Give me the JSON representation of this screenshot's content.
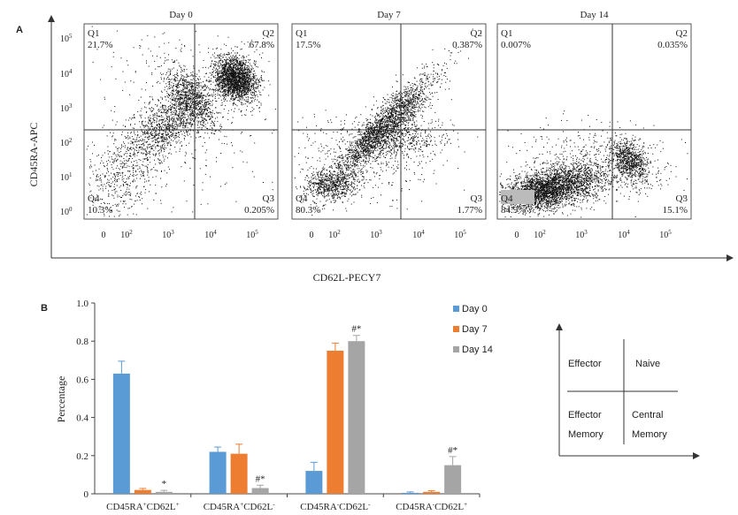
{
  "panelA": {
    "letter": "A",
    "ylabel": "CD45RA-APC",
    "xlabel": "CD62L-PECY7",
    "y_ticks": [
      {
        "base": "10",
        "exp": "5"
      },
      {
        "base": "10",
        "exp": "4"
      },
      {
        "base": "10",
        "exp": "3"
      },
      {
        "base": "10",
        "exp": "2"
      },
      {
        "base": "10",
        "exp": "1"
      },
      {
        "base": "10",
        "exp": "0"
      }
    ],
    "x_ticks": [
      {
        "base": "0",
        "exp": ""
      },
      {
        "base": "10",
        "exp": "2"
      },
      {
        "base": "10",
        "exp": "3"
      },
      {
        "base": "10",
        "exp": "4"
      },
      {
        "base": "10",
        "exp": "5"
      }
    ]
  },
  "panelB": {
    "letter": "B",
    "ylabel": "Percentage"
  },
  "diagram": {
    "top_left": "Effector",
    "top_right": "Naive",
    "bottom_left_1": "Effector",
    "bottom_left_2": "Memory",
    "bottom_right_1": "Central",
    "bottom_right_2": "Memory"
  },
  "chart_data": [
    {
      "type": "scatter",
      "title": "Day 0",
      "xlabel": "CD62L-PECY7",
      "ylabel": "CD45RA-APC",
      "scale": "log",
      "quadrants": [
        {
          "name": "Q1",
          "value": "21.7%"
        },
        {
          "name": "Q2",
          "value": "67.8%"
        },
        {
          "name": "Q3",
          "value": "0.205%"
        },
        {
          "name": "Q4",
          "value": "10.3%"
        }
      ]
    },
    {
      "type": "scatter",
      "title": "Day 7",
      "xlabel": "CD62L-PECY7",
      "ylabel": "CD45RA-APC",
      "scale": "log",
      "quadrants": [
        {
          "name": "Q1",
          "value": "17.5%"
        },
        {
          "name": "Q2",
          "value": "0.387%"
        },
        {
          "name": "Q3",
          "value": "1.77%"
        },
        {
          "name": "Q4",
          "value": "80.3%"
        }
      ]
    },
    {
      "type": "scatter",
      "title": "Day 14",
      "xlabel": "CD62L-PECY7",
      "ylabel": "CD45RA-APC",
      "scale": "log",
      "quadrants": [
        {
          "name": "Q1",
          "value": "0.007%"
        },
        {
          "name": "Q2",
          "value": "0.035%"
        },
        {
          "name": "Q3",
          "value": "15.1%"
        },
        {
          "name": "Q4",
          "value": "84.9%"
        }
      ]
    },
    {
      "type": "bar",
      "ylabel": "Percentage",
      "ylim": [
        0,
        1.0
      ],
      "yticks": [
        "0",
        "0.2",
        "0.4",
        "0.6",
        "0.8",
        "1.0"
      ],
      "grid": false,
      "legend_position": "top-right",
      "categories": [
        {
          "sup1": "+",
          "sup2": "+"
        },
        {
          "sup1": "+",
          "sup2": "-"
        },
        {
          "sup1": "-",
          "sup2": "-"
        },
        {
          "sup1": "-",
          "sup2": "+"
        }
      ],
      "category_prefix": "CD45RA",
      "category_mid": "CD62L",
      "series": [
        {
          "name": "Day 0",
          "color": "#5b9bd5",
          "values": [
            0.63,
            0.22,
            0.12,
            0.005
          ],
          "errors": [
            0.065,
            0.025,
            0.045,
            0.005
          ],
          "markers": [
            "",
            "",
            "",
            ""
          ]
        },
        {
          "name": "Day 7",
          "color": "#ed7d31",
          "values": [
            0.02,
            0.21,
            0.75,
            0.01
          ],
          "errors": [
            0.008,
            0.05,
            0.04,
            0.006
          ],
          "markers": [
            "",
            "",
            "",
            ""
          ]
        },
        {
          "name": "Day 14",
          "color": "#a5a5a5",
          "values": [
            0.01,
            0.03,
            0.8,
            0.15
          ],
          "errors": [
            0.008,
            0.015,
            0.03,
            0.045
          ],
          "markers": [
            "*",
            "#*",
            "#*",
            "#*"
          ]
        }
      ]
    }
  ]
}
